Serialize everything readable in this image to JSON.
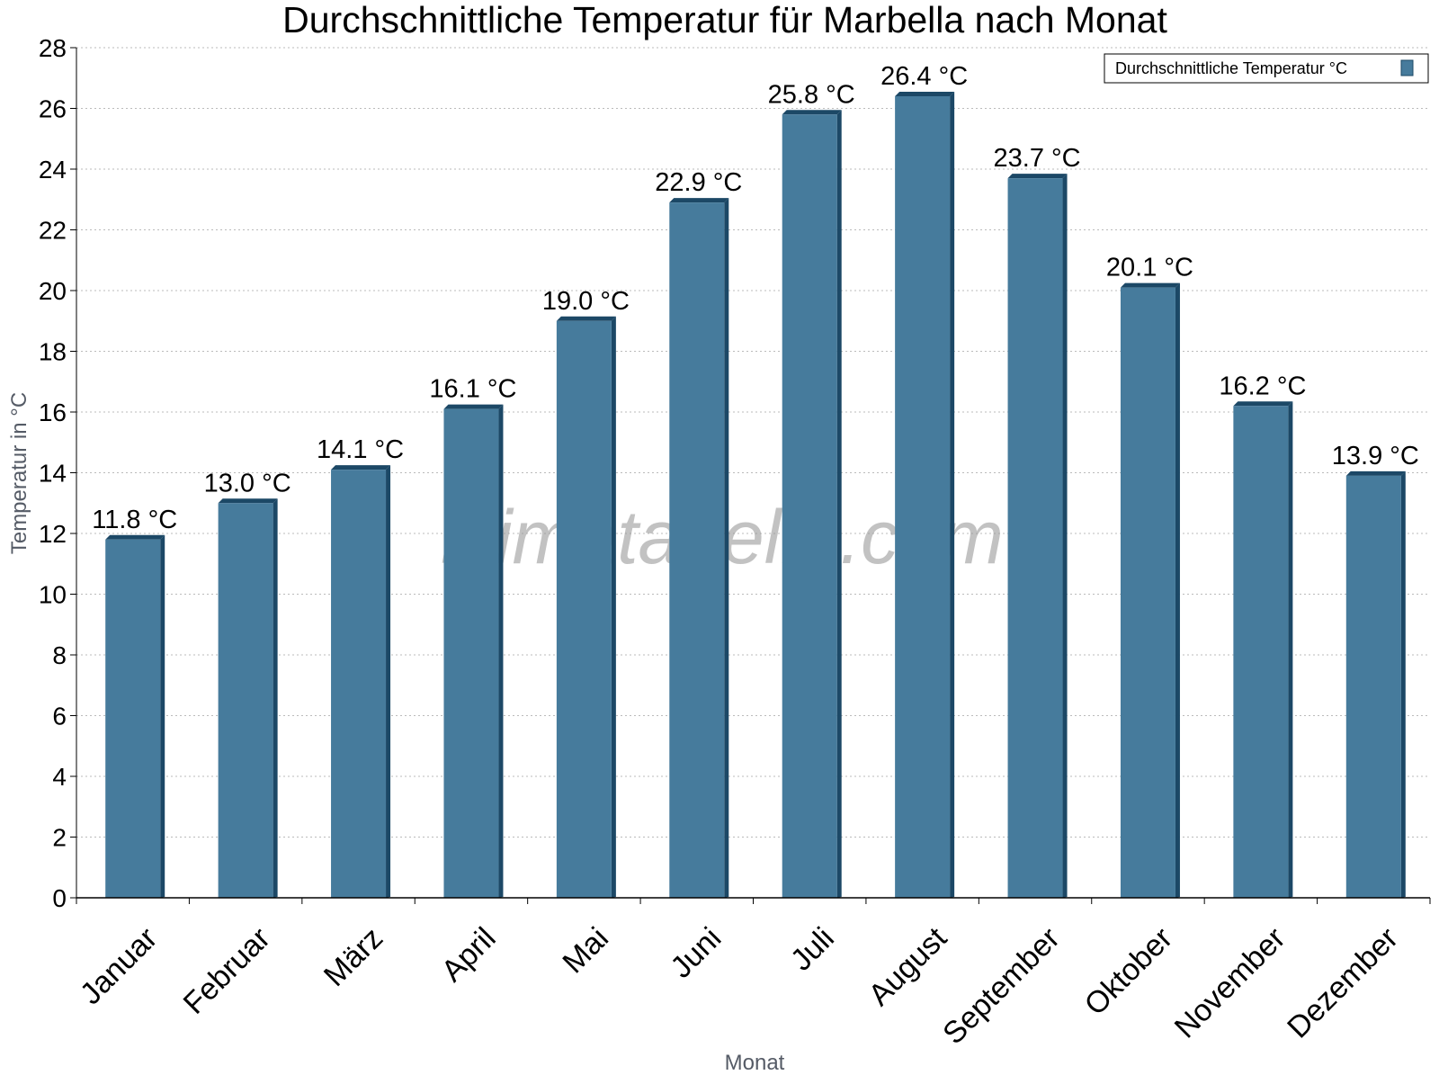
{
  "chart_data": {
    "type": "bar",
    "title": "Durchschnittliche Temperatur für Marbella nach Monat",
    "xlabel": "Monat",
    "ylabel": "Temperatur in °C",
    "categories": [
      "Januar",
      "Februar",
      "März",
      "April",
      "Mai",
      "Juni",
      "Juli",
      "August",
      "September",
      "Oktober",
      "November",
      "Dezember"
    ],
    "series": [
      {
        "name": "Durchschnittliche Temperatur °C",
        "values": [
          11.8,
          13.0,
          14.1,
          16.1,
          19.0,
          22.9,
          25.8,
          26.4,
          23.7,
          20.1,
          16.2,
          13.9
        ],
        "data_labels": [
          "11.8 °C",
          "13.0 °C",
          "14.1 °C",
          "16.1 °C",
          "19.0 °C",
          "22.9 °C",
          "25.8 °C",
          "26.4 °C",
          "23.7 °C",
          "20.1 °C",
          "16.2 °C",
          "13.9 °C"
        ]
      }
    ],
    "ylim": [
      0,
      28
    ],
    "yticks": [
      0,
      2,
      4,
      6,
      8,
      10,
      12,
      14,
      16,
      18,
      20,
      22,
      24,
      26,
      28
    ],
    "grid": "horizontal dotted",
    "legend_position": "top-right",
    "colors": {
      "bar": "#467b9c",
      "bar_shade": "#1c4866",
      "grid": "#bbbbbb",
      "axis": "#000000"
    },
    "watermark": "klimatabelle.com"
  }
}
